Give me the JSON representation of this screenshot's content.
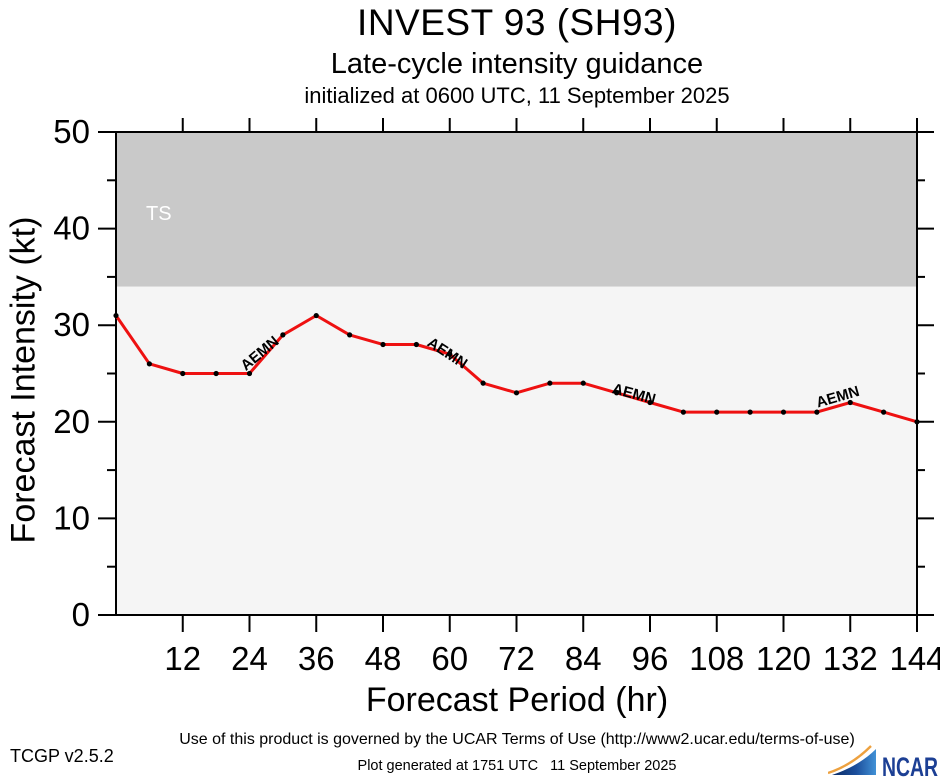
{
  "titles": {
    "line1": "INVEST 93 (SH93)",
    "line2": "Late-cycle intensity guidance",
    "line3": "initialized at 0600 UTC, 11 September 2025"
  },
  "footer": {
    "terms": "Use of this product is governed by the UCAR Terms of Use (http://www2.ucar.edu/terms-of-use)",
    "version": "TCGP v2.5.2",
    "generated": "Plot generated at 1751 UTC   11 September 2025",
    "logo_text": "NCAR"
  },
  "chart_data": {
    "type": "line",
    "title": "INVEST 93 (SH93) Late-cycle intensity guidance",
    "xlabel": "Forecast Period (hr)",
    "ylabel": "Forecast Intensity (kt)",
    "xlim": [
      0,
      144
    ],
    "ylim": [
      0,
      50
    ],
    "x_major_ticks": [
      12,
      24,
      36,
      48,
      60,
      72,
      84,
      96,
      108,
      120,
      132,
      144
    ],
    "y_major_ticks": [
      0,
      10,
      20,
      30,
      40,
      50
    ],
    "y_minor_ticks": [
      5,
      15,
      25,
      35,
      45
    ],
    "grid": false,
    "plot_bg_color": "#f5f5f5",
    "regions": [
      {
        "label": "TS",
        "from": 34,
        "to": 50,
        "color": "#c9c9c9",
        "label_color": "#ffffff"
      }
    ],
    "series": [
      {
        "name": "AEMN",
        "color": "#ee1111",
        "marker_color": "#000000",
        "x": [
          0,
          6,
          12,
          18,
          24,
          30,
          36,
          42,
          48,
          54,
          60,
          66,
          72,
          78,
          84,
          90,
          96,
          102,
          108,
          114,
          120,
          126,
          132,
          138,
          144
        ],
        "values": [
          31,
          26,
          25,
          25,
          25,
          29,
          31,
          29,
          28,
          28,
          27,
          24,
          23,
          24,
          24,
          23,
          22,
          21,
          21,
          21,
          21,
          21,
          22,
          21,
          20
        ]
      }
    ],
    "series_labels": [
      {
        "text": "AEMN",
        "hour": 26.4,
        "kt": 26.7,
        "rotation": -40
      },
      {
        "text": "AEMN",
        "hour": 59.1,
        "kt": 26.7,
        "rotation": 33
      },
      {
        "text": "AEMN",
        "hour": 92.9,
        "kt": 22.4,
        "rotation": 15
      },
      {
        "text": "AEMN",
        "hour": 130.0,
        "kt": 22.1,
        "rotation": -16
      }
    ]
  }
}
